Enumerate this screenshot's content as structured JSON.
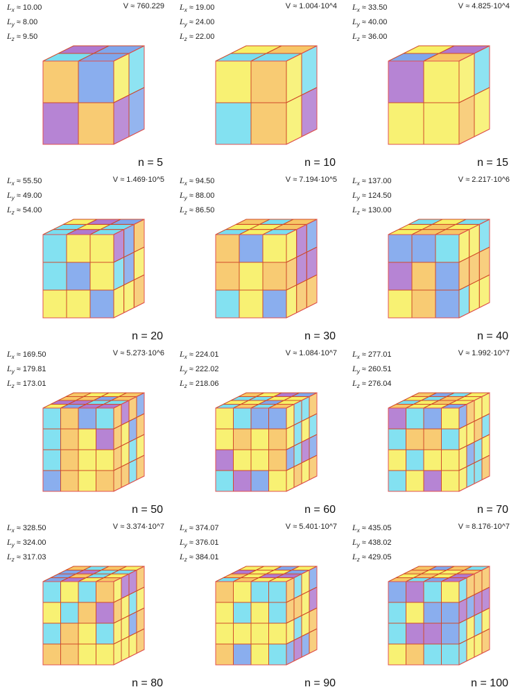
{
  "colors": {
    "yellow": "#f2e600",
    "orange": "#f2a000",
    "cyan": "#1ec8e6",
    "blue": "#2a6be0",
    "purple": "#7a1fb0",
    "edge": "#d04a2a",
    "frame": "#e05050"
  },
  "labels": {
    "lx": "L",
    "lx_sub": "x",
    "ly": "L",
    "ly_sub": "y",
    "lz": "L",
    "lz_sub": "z"
  },
  "panels": [
    {
      "lx": "≈ 10.00",
      "ly": "≈ 8.00",
      "lz": "≈ 9.50",
      "volume": "V ≈ 760.229",
      "n": "n = 5"
    },
    {
      "lx": "≈ 19.00",
      "ly": "≈ 24.00",
      "lz": "≈ 22.00",
      "volume": "V ≈ 1.004·10^4",
      "n": "n = 10"
    },
    {
      "lx": "≈ 33.50",
      "ly": "≈ 40.00",
      "lz": "≈ 36.00",
      "volume": "V ≈ 4.825·10^4",
      "n": "n = 15"
    },
    {
      "lx": "≈ 55.50",
      "ly": "≈ 49.00",
      "lz": "≈ 54.00",
      "volume": "V ≈ 1.469·10^5",
      "n": "n = 20"
    },
    {
      "lx": "≈ 94.50",
      "ly": "≈ 88.00",
      "lz": "≈ 86.50",
      "volume": "V ≈ 7.194·10^5",
      "n": "n = 30"
    },
    {
      "lx": "≈ 137.00",
      "ly": "≈ 124.50",
      "lz": "≈ 130.00",
      "volume": "V ≈ 2.217·10^6",
      "n": "n = 40"
    },
    {
      "lx": "≈ 169.50",
      "ly": "≈ 179.81",
      "lz": "≈ 173.01",
      "volume": "V ≈ 5.273·10^6",
      "n": "n = 50"
    },
    {
      "lx": "≈ 224.01",
      "ly": "≈ 222.02",
      "lz": "≈ 218.06",
      "volume": "V ≈ 1.084·10^7",
      "n": "n = 60"
    },
    {
      "lx": "≈ 277.01",
      "ly": "≈ 260.51",
      "lz": "≈ 276.04",
      "volume": "V ≈ 1.992·10^7",
      "n": "n = 70"
    },
    {
      "lx": "≈ 328.50",
      "ly": "≈ 324.00",
      "lz": "≈ 317.03",
      "volume": "V ≈ 3.374·10^7",
      "n": "n = 80"
    },
    {
      "lx": "≈ 374.07",
      "ly": "≈ 376.01",
      "lz": "≈ 384.01",
      "volume": "V ≈ 5.401·10^7",
      "n": "n = 90"
    },
    {
      "lx": "≈ 435.05",
      "ly": "≈ 438.02",
      "lz": "≈ 429.05",
      "volume": "V ≈ 8.176·10^7",
      "n": "n = 100"
    }
  ]
}
